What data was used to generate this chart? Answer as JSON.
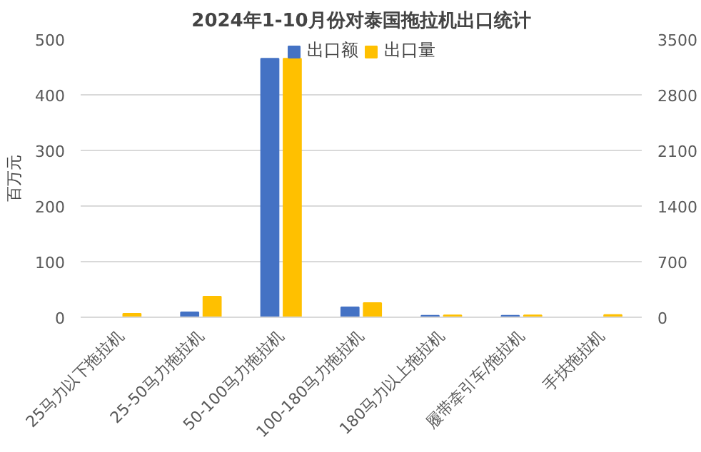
{
  "chart_data": {
    "type": "bar",
    "title": "2024年1-10月份对泰国拖拉机出口统计",
    "ylabel": "百万元",
    "categories": [
      "25马力以下拖拉机",
      "25-50马力拖拉机",
      "50-100马力拖拉机",
      "100-180马力拖拉机",
      "180马力以上拖拉机",
      "履带牵引车/拖拉机",
      "手扶拖拉机"
    ],
    "series": [
      {
        "name": "出口额",
        "color": "#4472c4",
        "values": [
          0,
          9,
          465,
          18,
          3,
          3,
          0
        ]
      },
      {
        "name": "出口量",
        "color": "#ffc000",
        "axis": "y2",
        "values": [
          45,
          260,
          3255,
          180,
          25,
          25,
          30
        ]
      }
    ],
    "ylim": [
      0,
      500
    ],
    "yticks": [
      0,
      100,
      200,
      300,
      400,
      500
    ],
    "y2lim": [
      0,
      3500
    ],
    "y2ticks": [
      0,
      700,
      1400,
      2100,
      2800,
      3500
    ],
    "grid": "y",
    "legend": "top"
  }
}
